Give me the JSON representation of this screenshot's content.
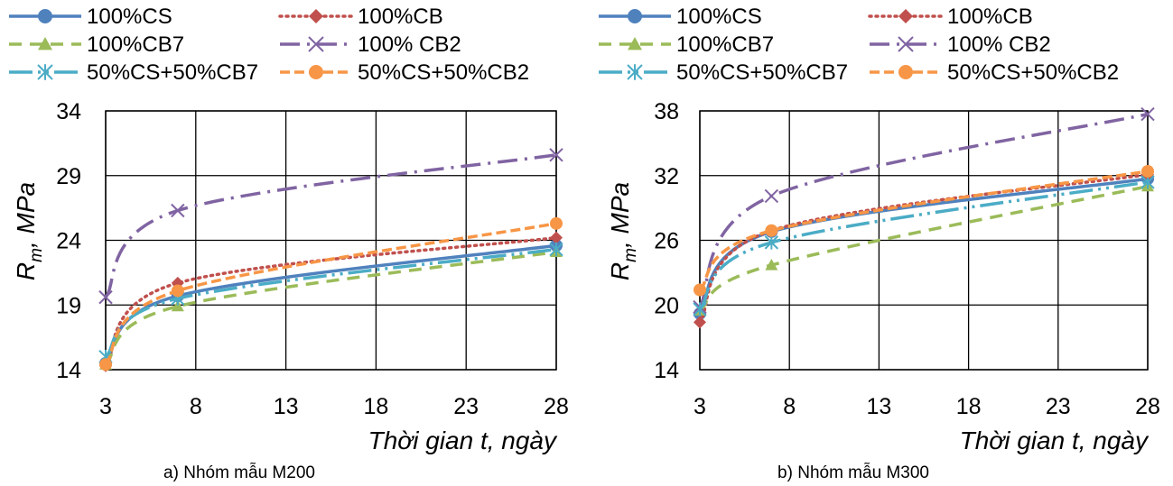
{
  "chart_data": [
    {
      "type": "line",
      "caption": "a) Nhóm mẫu M200",
      "xlabel": "Thời gian t, ngày",
      "ylabel_main": "R",
      "ylabel_sub": "m",
      "ylabel_unit": ", MPa",
      "xlim": [
        3,
        28
      ],
      "ylim": [
        14,
        34
      ],
      "xticks": [
        3,
        8,
        13,
        18,
        23,
        28
      ],
      "yticks": [
        14,
        19,
        24,
        29,
        34
      ],
      "grid": true,
      "legend_position": "top",
      "x": [
        3,
        7,
        28
      ],
      "series": [
        {
          "name": "100%CS",
          "values": [
            14.5,
            19.7,
            23.6
          ],
          "color": "#4F81BD",
          "dash": "",
          "marker": "circle"
        },
        {
          "name": "100%CB",
          "values": [
            14.3,
            20.7,
            24.2
          ],
          "color": "#C0504D",
          "dash": "2,5",
          "marker": "diamond"
        },
        {
          "name": "100%CB7",
          "values": [
            14.4,
            18.9,
            23.1
          ],
          "color": "#9BBB59",
          "dash": "14,9",
          "marker": "triangle"
        },
        {
          "name": "100% CB2",
          "values": [
            19.6,
            26.3,
            30.6
          ],
          "color": "#8064A2",
          "dash": "22,8,3,8",
          "marker": "x"
        },
        {
          "name": "50%CS+50%CB7",
          "values": [
            15.0,
            19.5,
            23.3
          ],
          "color": "#4BACC6",
          "dash": "26,6,3,6,3,6",
          "marker": "asterisk"
        },
        {
          "name": "50%CS+50%CB2",
          "values": [
            14.4,
            20.1,
            25.3
          ],
          "color": "#F79646",
          "dash": "11,5",
          "marker": "circle"
        }
      ]
    },
    {
      "type": "line",
      "caption": "b) Nhóm mẫu M300",
      "xlabel": "Thời gian t, ngày",
      "ylabel_main": "R",
      "ylabel_sub": "m",
      "ylabel_unit": ", MPa",
      "xlim": [
        3,
        28
      ],
      "ylim": [
        14,
        38
      ],
      "xticks": [
        3,
        8,
        13,
        18,
        23,
        28
      ],
      "yticks": [
        14,
        20,
        26,
        32,
        38
      ],
      "grid": true,
      "legend_position": "top",
      "x": [
        3,
        7,
        28
      ],
      "series": [
        {
          "name": "100%CS",
          "values": [
            19.2,
            26.8,
            31.7
          ],
          "color": "#4F81BD",
          "dash": "",
          "marker": "circle"
        },
        {
          "name": "100%CB",
          "values": [
            18.4,
            26.9,
            32.1
          ],
          "color": "#C0504D",
          "dash": "2,5",
          "marker": "diamond"
        },
        {
          "name": "100%CB7",
          "values": [
            19.5,
            23.7,
            31.0
          ],
          "color": "#9BBB59",
          "dash": "14,9",
          "marker": "triangle"
        },
        {
          "name": "100% CB2",
          "values": [
            19.8,
            30.1,
            37.7
          ],
          "color": "#8064A2",
          "dash": "22,8,3,8",
          "marker": "x"
        },
        {
          "name": "50%CS+50%CB7",
          "values": [
            19.6,
            25.8,
            31.4
          ],
          "color": "#4BACC6",
          "dash": "26,6,3,6,3,6",
          "marker": "asterisk"
        },
        {
          "name": "50%CS+50%CB2",
          "values": [
            21.4,
            26.9,
            32.4
          ],
          "color": "#F79646",
          "dash": "11,5",
          "marker": "circle"
        }
      ]
    }
  ]
}
